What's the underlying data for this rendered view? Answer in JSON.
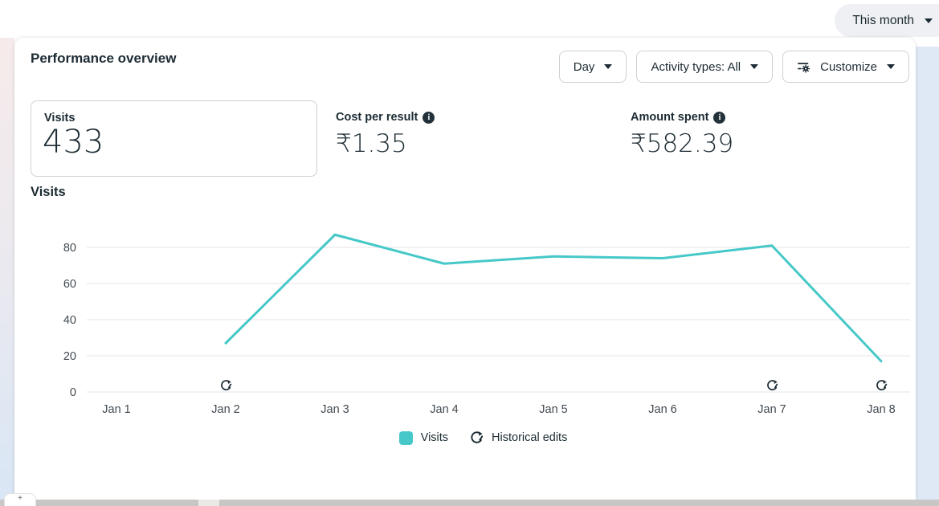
{
  "header": {
    "date_range_label": "This month",
    "title": "Performance overview",
    "controls": {
      "day_label": "Day",
      "activity_label": "Activity types: All",
      "customize_label": "Customize"
    }
  },
  "metrics": {
    "visits": {
      "label": "Visits",
      "value": "433"
    },
    "cost_per_result": {
      "label": "Cost per result",
      "value": "₹1.35"
    },
    "amount_spent": {
      "label": "Amount spent",
      "value": "₹582.39"
    }
  },
  "chart_section": {
    "title": "Visits"
  },
  "legend": {
    "visits": "Visits",
    "historical_edits": "Historical edits"
  },
  "chart_data": {
    "type": "line",
    "title": "Visits",
    "x": [
      "Jan 1",
      "Jan 2",
      "Jan 3",
      "Jan 4",
      "Jan 5",
      "Jan 6",
      "Jan 7",
      "Jan 8"
    ],
    "series": [
      {
        "name": "Visits",
        "values": [
          null,
          27,
          87,
          71,
          75,
          74,
          81,
          17
        ],
        "color": "#47c8c8"
      }
    ],
    "historical_edit_days": [
      "Jan 2",
      "Jan 7",
      "Jan 8"
    ],
    "yticks": [
      0,
      20,
      40,
      60,
      80
    ],
    "ylim": [
      0,
      90
    ],
    "grid": true,
    "legend_position": "bottom",
    "grid_color": "#e5e6ea",
    "axis_text_color": "#424a52"
  }
}
